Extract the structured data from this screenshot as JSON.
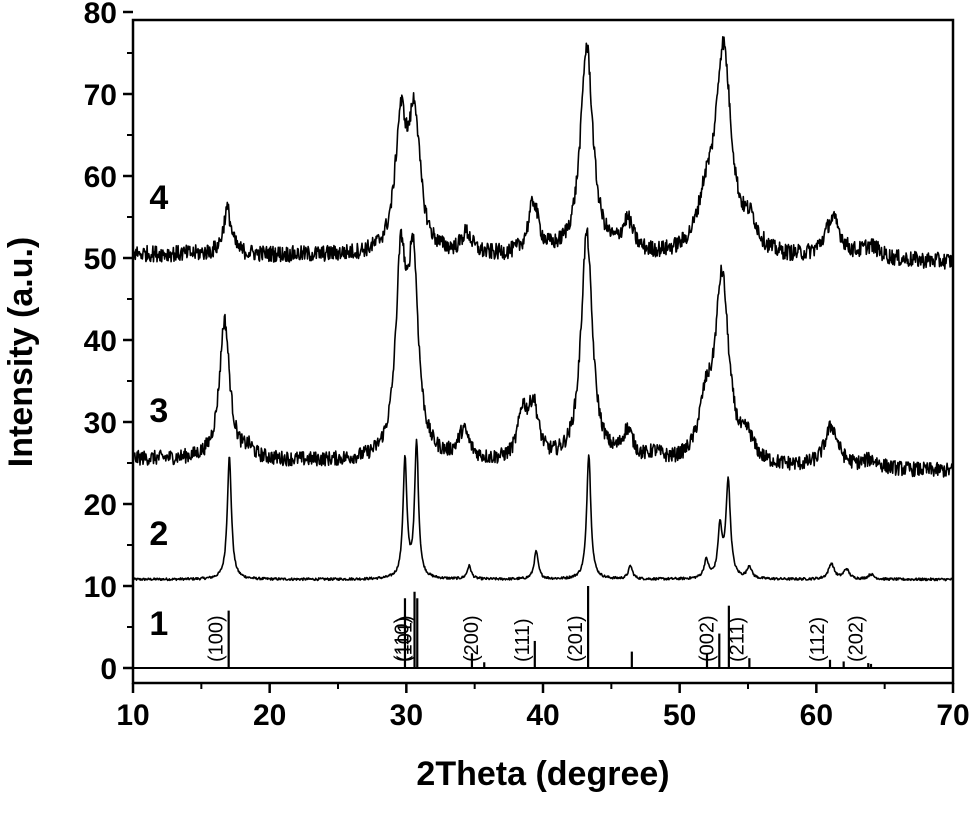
{
  "chart_data": {
    "type": "line",
    "xlabel": "2Theta (degree)",
    "ylabel": "Intensity (a.u.)",
    "xlim": [
      10,
      70
    ],
    "ylim": [
      0,
      80
    ],
    "x_ticks": [
      "10",
      "20",
      "30",
      "40",
      "50",
      "60",
      "70"
    ],
    "y_ticks": [
      "0",
      "10",
      "20",
      "30",
      "40",
      "50",
      "60",
      "70",
      "80"
    ],
    "grid": false,
    "legend": "none",
    "curve_labels": [
      {
        "text": "1",
        "x": 11.2,
        "y": 4
      },
      {
        "text": "2",
        "x": 11.2,
        "y": 15
      },
      {
        "text": "3",
        "x": 11.2,
        "y": 30
      },
      {
        "text": "4",
        "x": 11.2,
        "y": 56
      }
    ],
    "reference_sticks": {
      "name": "1",
      "peaks": [
        {
          "x": 17.0,
          "y": 7.0,
          "hkl": "(100)"
        },
        {
          "x": 29.9,
          "y": 8.5,
          "hkl": ""
        },
        {
          "x": 30.6,
          "y": 9.3,
          "hkl": "(110)"
        },
        {
          "x": 30.8,
          "y": 8.5,
          "hkl": "(101)"
        },
        {
          "x": 34.8,
          "y": 1.8,
          "hkl": ""
        },
        {
          "x": 35.7,
          "y": 0.7,
          "hkl": "(200)"
        },
        {
          "x": 39.4,
          "y": 3.3,
          "hkl": "(111)"
        },
        {
          "x": 43.3,
          "y": 10.0,
          "hkl": "(201)"
        },
        {
          "x": 46.5,
          "y": 2.0,
          "hkl": ""
        },
        {
          "x": 52.0,
          "y": 1.8,
          "hkl": ""
        },
        {
          "x": 52.9,
          "y": 4.2,
          "hkl": "(002)"
        },
        {
          "x": 53.6,
          "y": 7.6,
          "hkl": ""
        },
        {
          "x": 55.1,
          "y": 1.2,
          "hkl": "(211)"
        },
        {
          "x": 61.0,
          "y": 1.0,
          "hkl": "(112)"
        },
        {
          "x": 62.0,
          "y": 0.8,
          "hkl": ""
        },
        {
          "x": 63.8,
          "y": 0.6,
          "hkl": "(202)"
        },
        {
          "x": 64.0,
          "y": 0.5,
          "hkl": ""
        }
      ]
    },
    "series": [
      {
        "name": "2",
        "baseline": 10.8,
        "noise": 0.15,
        "peaks": [
          {
            "x": 17.05,
            "h": 15.0,
            "w": 0.18
          },
          {
            "x": 29.9,
            "h": 14.5,
            "w": 0.17
          },
          {
            "x": 30.75,
            "h": 16.5,
            "w": 0.17
          },
          {
            "x": 34.6,
            "h": 1.6,
            "w": 0.18
          },
          {
            "x": 39.5,
            "h": 3.4,
            "w": 0.18
          },
          {
            "x": 43.35,
            "h": 15.3,
            "w": 0.18
          },
          {
            "x": 46.4,
            "h": 1.6,
            "w": 0.18
          },
          {
            "x": 51.95,
            "h": 2.2,
            "w": 0.2
          },
          {
            "x": 52.95,
            "h": 6.0,
            "w": 0.18
          },
          {
            "x": 53.55,
            "h": 11.8,
            "w": 0.2
          },
          {
            "x": 55.1,
            "h": 1.5,
            "w": 0.2
          },
          {
            "x": 61.1,
            "h": 1.9,
            "w": 0.25
          },
          {
            "x": 62.2,
            "h": 1.2,
            "w": 0.25
          },
          {
            "x": 64.0,
            "h": 0.6,
            "w": 0.25
          }
        ]
      },
      {
        "name": "3",
        "baseline": 25.5,
        "baseline_end": 24.0,
        "noise": 0.9,
        "peaks": [
          {
            "x": 16.7,
            "h": 17.0,
            "w": 0.45
          },
          {
            "x": 18.5,
            "h": 1.0,
            "w": 0.4
          },
          {
            "x": 29.6,
            "h": 23.0,
            "w": 0.45
          },
          {
            "x": 30.5,
            "h": 23.0,
            "w": 0.45
          },
          {
            "x": 34.2,
            "h": 3.5,
            "w": 0.5
          },
          {
            "x": 38.5,
            "h": 5.5,
            "w": 0.4
          },
          {
            "x": 39.3,
            "h": 6.5,
            "w": 0.45
          },
          {
            "x": 43.2,
            "h": 28.0,
            "w": 0.5
          },
          {
            "x": 46.2,
            "h": 3.5,
            "w": 0.5
          },
          {
            "x": 48.2,
            "h": 1.0,
            "w": 0.6
          },
          {
            "x": 51.9,
            "h": 6.0,
            "w": 0.6
          },
          {
            "x": 53.1,
            "h": 22.5,
            "w": 0.6
          },
          {
            "x": 55.0,
            "h": 2.5,
            "w": 0.5
          },
          {
            "x": 61.1,
            "h": 5.0,
            "w": 0.6
          },
          {
            "x": 64.0,
            "h": 1.0,
            "w": 0.7
          }
        ]
      },
      {
        "name": "4",
        "baseline": 50.5,
        "baseline_end": 49.5,
        "noise": 1.0,
        "peaks": [
          {
            "x": 16.9,
            "h": 5.5,
            "w": 0.35
          },
          {
            "x": 29.6,
            "h": 15.5,
            "w": 0.5
          },
          {
            "x": 30.6,
            "h": 16.0,
            "w": 0.5
          },
          {
            "x": 34.4,
            "h": 2.5,
            "w": 0.45
          },
          {
            "x": 39.3,
            "h": 6.3,
            "w": 0.45
          },
          {
            "x": 43.2,
            "h": 25.5,
            "w": 0.55
          },
          {
            "x": 46.2,
            "h": 3.8,
            "w": 0.5
          },
          {
            "x": 51.9,
            "h": 5.0,
            "w": 0.7
          },
          {
            "x": 53.2,
            "h": 25.0,
            "w": 0.7
          },
          {
            "x": 55.2,
            "h": 3.0,
            "w": 0.6
          },
          {
            "x": 61.2,
            "h": 4.8,
            "w": 0.7
          },
          {
            "x": 64.0,
            "h": 1.5,
            "w": 0.8
          }
        ]
      }
    ]
  }
}
